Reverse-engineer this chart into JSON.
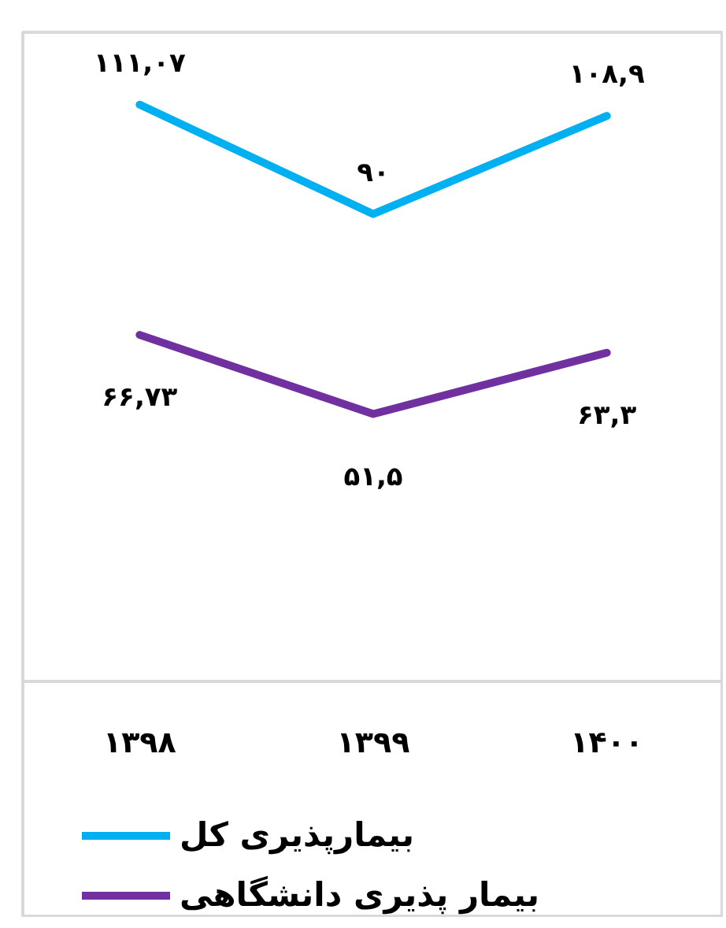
{
  "chart_data": {
    "type": "line",
    "categories": [
      "۱۳۹۸",
      "۱۳۹۹",
      "۱۴۰۰"
    ],
    "series": [
      {
        "name": "بیمارپذیری کل",
        "color": "#00b0f0",
        "values": [
          111.07,
          90,
          108.9
        ],
        "value_labels": [
          "۱۱۱,۰۷",
          "۹۰",
          "۱۰۸,۹"
        ]
      },
      {
        "name": "بیمار پذیری دانشگاهی",
        "color": "#7030a0",
        "values": [
          66.73,
          51.5,
          63.3
        ],
        "value_labels": [
          "۶۶,۷۳",
          "۵۱,۵",
          "۶۳,۳"
        ]
      }
    ],
    "ylim": [
      0,
      125
    ],
    "tick_labels": "x",
    "legend": "bottom",
    "grid": false,
    "marker": "none",
    "line_style": "solid"
  }
}
